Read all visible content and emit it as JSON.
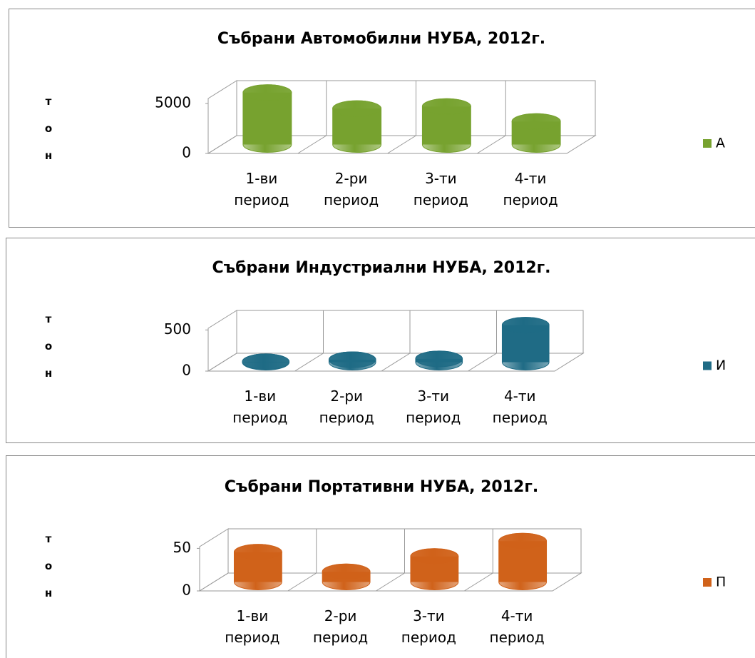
{
  "chart_data": [
    {
      "type": "bar3d",
      "title": "Събрани  Автомобилни НУБА, 2012г.",
      "y_label": "тон",
      "categories": [
        "1-ви период",
        "2-ри период",
        "3-ти период",
        "4-ти период"
      ],
      "series": [
        {
          "name": "А",
          "color": "#77a22f",
          "values": [
            5200,
            3600,
            3800,
            2300
          ]
        }
      ],
      "ylim": [
        0,
        5500
      ],
      "yticks": [
        0,
        5000
      ]
    },
    {
      "type": "bar3d",
      "title": "Събрани Индустриални НУБА, 2012г.",
      "y_label": "тон",
      "categories": [
        "1-ви период",
        "2-ри период",
        "3-ти период",
        "4-ти период"
      ],
      "series": [
        {
          "name": "И",
          "color": "#1f6b85",
          "values": [
            5,
            30,
            40,
            450
          ]
        }
      ],
      "ylim": [
        0,
        520
      ],
      "yticks": [
        0,
        500
      ]
    },
    {
      "type": "bar3d",
      "title": "Събрани Портативни НУБА, 2012г.",
      "y_label": "тон",
      "categories": [
        "1-ви период",
        "2-ри период",
        "3-ти период",
        "4-ти период"
      ],
      "series": [
        {
          "name": "П",
          "color": "#d0621a",
          "values": [
            35,
            12,
            30,
            48
          ]
        }
      ],
      "ylim": [
        0,
        52
      ],
      "yticks": [
        0,
        50
      ]
    }
  ]
}
